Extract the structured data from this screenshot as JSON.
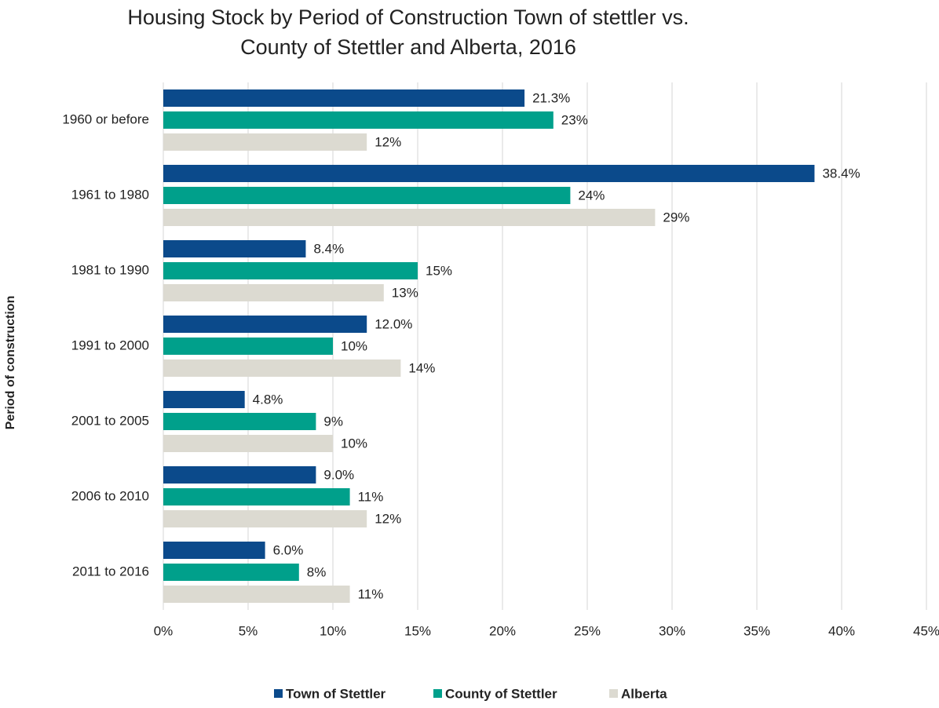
{
  "chart_data": {
    "type": "hbar",
    "title": [
      "Housing Stock by Period of Construction Town of stettler vs.",
      "County of Stettler and Alberta, 2016"
    ],
    "y_label": "Period of construction",
    "categories": [
      "1960 or before",
      "1961 to 1980",
      "1981 to 1990",
      "1991 to 2000",
      "2001 to 2005",
      "2006 to 2010",
      "2011 to 2016"
    ],
    "series": [
      {
        "name": "Town of Stettler",
        "color": "#0b4a8b",
        "values": [
          21.3,
          38.4,
          8.4,
          12.0,
          4.8,
          9.0,
          6.0
        ],
        "value_labels": [
          "21.3%",
          "38.4%",
          "8.4%",
          "12.0%",
          "4.8%",
          "9.0%",
          "6.0%"
        ]
      },
      {
        "name": "County of Stettler",
        "color": "#00a08b",
        "values": [
          23,
          24,
          15,
          10,
          9,
          11,
          8
        ],
        "value_labels": [
          "23%",
          "24%",
          "15%",
          "10%",
          "9%",
          "11%",
          "8%"
        ]
      },
      {
        "name": "Alberta",
        "color": "#dcdad1",
        "values": [
          12,
          29,
          13,
          14,
          10,
          12,
          11
        ],
        "value_labels": [
          "12%",
          "29%",
          "13%",
          "14%",
          "10%",
          "12%",
          "11%"
        ]
      }
    ],
    "xlim": [
      0,
      45
    ],
    "xticks": [
      {
        "value": 0,
        "label": "0%"
      },
      {
        "value": 5,
        "label": "5%"
      },
      {
        "value": 10,
        "label": "10%"
      },
      {
        "value": 15,
        "label": "15%"
      },
      {
        "value": 20,
        "label": "20%"
      },
      {
        "value": 25,
        "label": "25%"
      },
      {
        "value": 30,
        "label": "30%"
      },
      {
        "value": 35,
        "label": "35%"
      },
      {
        "value": 40,
        "label": "40%"
      },
      {
        "value": 45,
        "label": "45%"
      }
    ],
    "grid": true,
    "legend": "bottom"
  }
}
